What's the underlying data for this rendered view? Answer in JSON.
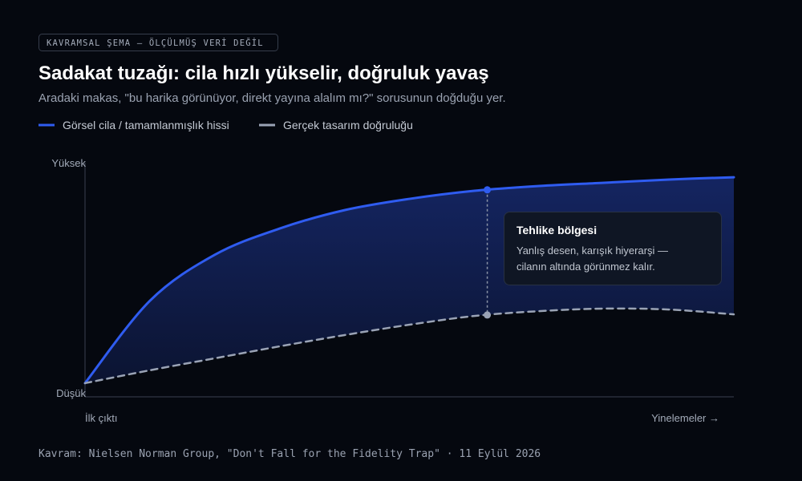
{
  "chart_data": {
    "type": "line",
    "badge": "KAVRAMSAL ŞEMA — ÖLÇÜLMÜŞ VERİ DEĞİL",
    "title": "Sadakat tuzağı: cila hızlı yükselir, doğruluk yavaş",
    "subtitle": "Aradaki makas, \"bu harika görünüyor, direkt yayına alalım mı?\" sorusunun doğduğu yer.",
    "x": [
      0,
      1,
      2,
      3,
      4,
      5,
      6,
      7,
      8,
      9,
      10
    ],
    "xlim": [
      0,
      10
    ],
    "xticks": [
      {
        "value": 0,
        "label": "İlk çıktı"
      },
      {
        "value": 10,
        "label": "Yinelemeler →"
      }
    ],
    "ylim": [
      0,
      100
    ],
    "yticks": [
      {
        "value": 0,
        "label": "Düşük"
      },
      {
        "value": 100,
        "label": "Yüksek"
      }
    ],
    "series": [
      {
        "name": "Görsel cila / tamamlanmışlık hissi",
        "color": "#2f5cf0",
        "dash": false,
        "values": [
          4.2,
          40,
          60,
          71.4,
          79.4,
          84.3,
          87.8,
          89.9,
          91.3,
          92.7,
          93.7
        ]
      },
      {
        "name": "Gerçek tasarım doğruluğu",
        "color": "#9aa3b5",
        "dash": true,
        "values": [
          4.2,
          9.8,
          15,
          20.2,
          25.1,
          29.6,
          33.4,
          35.5,
          36.6,
          36.2,
          34.1
        ]
      }
    ],
    "annotation": {
      "x": 6.2,
      "title": "Tehlike bölgesi",
      "lines": [
        "Yanlış desen, karışık hiyerarşi —",
        "cilanın altında görünmez kalır."
      ]
    },
    "footer": "Kavram: Nielsen Norman Group, \"Don't Fall for the Fidelity Trap\" · 11 Eylül 2026"
  }
}
